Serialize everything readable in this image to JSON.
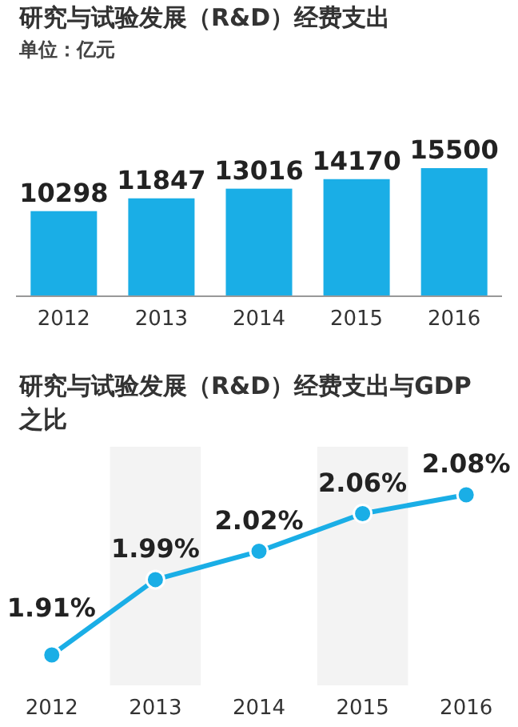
{
  "chart_data": [
    {
      "type": "bar",
      "title": "研究与试验发展（R&D）经费支出",
      "subtitle": "单位：亿元",
      "categories": [
        "2012",
        "2013",
        "2014",
        "2015",
        "2016"
      ],
      "values": [
        10298,
        11847,
        13016,
        14170,
        15500
      ],
      "color": "#1aaee6",
      "data_labels": true
    },
    {
      "type": "line",
      "title": "研究与试验发展（R&D）经费支出与GDP之比",
      "categories": [
        "2012",
        "2013",
        "2014",
        "2015",
        "2016"
      ],
      "values": [
        1.91,
        1.99,
        2.02,
        2.06,
        2.08
      ],
      "value_labels": [
        "1.91%",
        "1.99%",
        "2.02%",
        "2.06%",
        "2.08%"
      ],
      "color": "#1aaee6",
      "marker": "circle",
      "bands": [
        {
          "axis": "x",
          "from": "2013",
          "to": "2013",
          "color": "#f3f3f3"
        },
        {
          "axis": "x",
          "from": "2015",
          "to": "2015",
          "color": "#f3f3f3"
        }
      ]
    }
  ]
}
